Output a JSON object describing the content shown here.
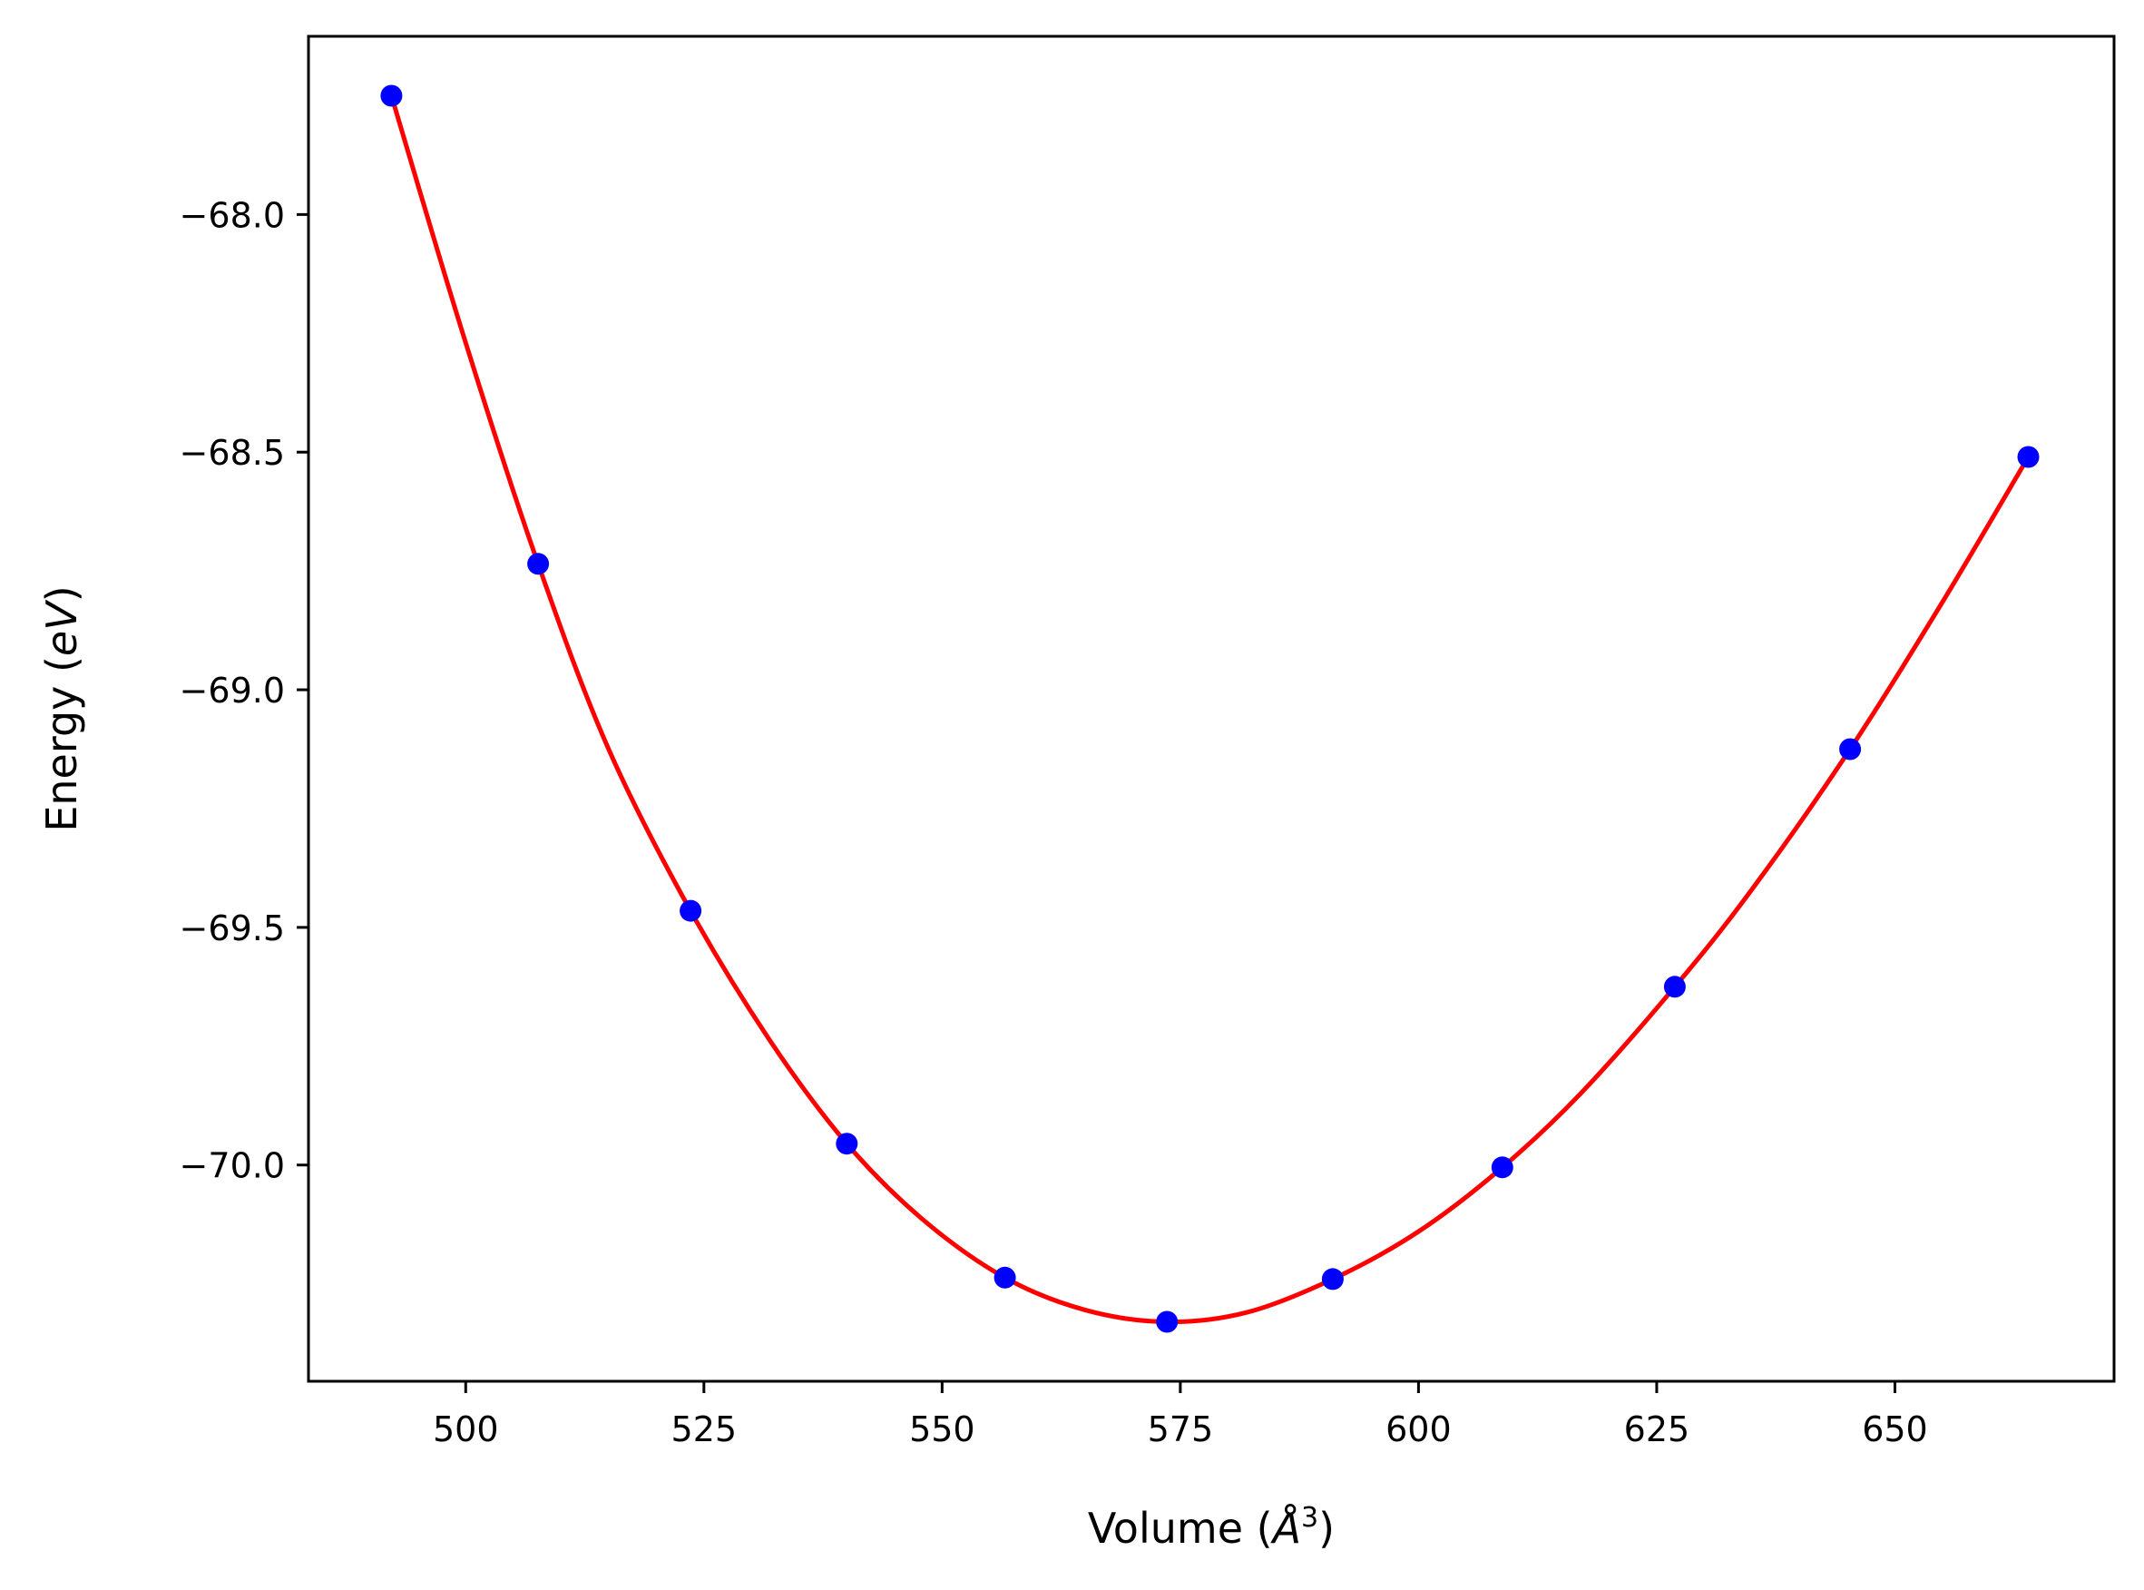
{
  "chart_data": {
    "type": "line",
    "title": "",
    "xlabel": "Volume (",
    "xlabel_italic": "Å",
    "xlabel_sup": "3",
    "xlabel_end": ")",
    "ylabel": "Energy (",
    "ylabel_italic": "eV",
    "ylabel_end": ")",
    "xlim": [
      483.5,
      673.0
    ],
    "ylim": [
      -70.455,
      -67.625
    ],
    "xticks": [
      500,
      525,
      550,
      575,
      600,
      625,
      650
    ],
    "xtick_labels": [
      "500",
      "525",
      "550",
      "575",
      "600",
      "625",
      "650"
    ],
    "yticks": [
      -68.0,
      -68.5,
      -69.0,
      -69.5,
      -70.0
    ],
    "ytick_labels": [
      "−68.0",
      "−68.5",
      "−69.0",
      "−69.5",
      "−70.0"
    ],
    "grid": false,
    "series": [
      {
        "kind": "points",
        "color": "#0000ff",
        "x": [
          492.2,
          507.6,
          523.6,
          540.0,
          556.6,
          573.6,
          591.0,
          608.8,
          626.9,
          645.3,
          664.0
        ],
        "y": [
          -67.75,
          -68.735,
          -69.465,
          -69.955,
          -70.237,
          -70.33,
          -70.24,
          -70.005,
          -69.625,
          -69.125,
          -68.51
        ]
      },
      {
        "kind": "fit-curve",
        "color": "#ff0000",
        "x": [
          492.2,
          500.0,
          507.6,
          515.0,
          523.6,
          532.0,
          540.0,
          548.0,
          556.6,
          565.0,
          573.6,
          582.0,
          591.0,
          600.0,
          608.8,
          617.0,
          626.9,
          635.0,
          645.3,
          655.0,
          664.0
        ],
        "y": [
          -67.75,
          -68.27,
          -68.735,
          -69.125,
          -69.465,
          -69.74,
          -69.955,
          -70.115,
          -70.237,
          -70.305,
          -70.33,
          -70.31,
          -70.24,
          -70.14,
          -70.005,
          -69.85,
          -69.625,
          -69.42,
          -69.125,
          -68.815,
          -68.51
        ]
      }
    ]
  }
}
